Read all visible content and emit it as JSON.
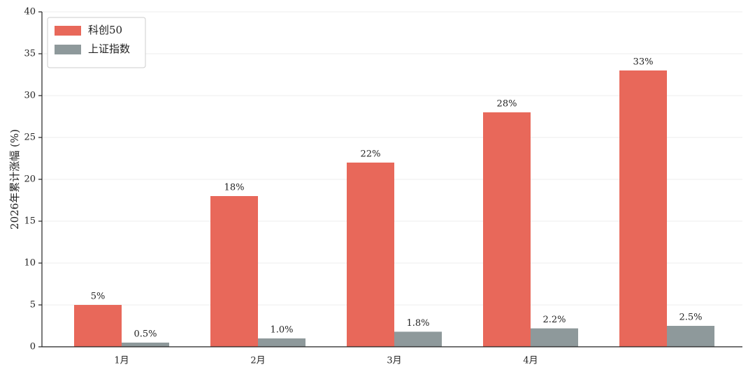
{
  "chart_data": {
    "type": "bar",
    "y_label": "2026年累计涨幅 (%)",
    "categories": [
      "1月",
      "2月",
      "3月",
      "4月",
      null
    ],
    "series": [
      {
        "name": "科创50",
        "color": "#e8685a",
        "values": [
          5,
          18,
          22,
          28,
          33
        ],
        "value_labels": [
          "5%",
          "18%",
          "22%",
          "28%",
          "33%"
        ]
      },
      {
        "name": "上证指数",
        "color": "#8e999b",
        "values": [
          0.5,
          1.0,
          1.8,
          2.2,
          2.5
        ],
        "value_labels": [
          "0.5%",
          "1.0%",
          "1.8%",
          "2.2%",
          "2.5%"
        ]
      }
    ],
    "ylim": [
      0,
      40
    ],
    "yticks": [
      0,
      5,
      10,
      15,
      20,
      25,
      30,
      35,
      40
    ],
    "grid": true,
    "legend": "upper-left"
  }
}
